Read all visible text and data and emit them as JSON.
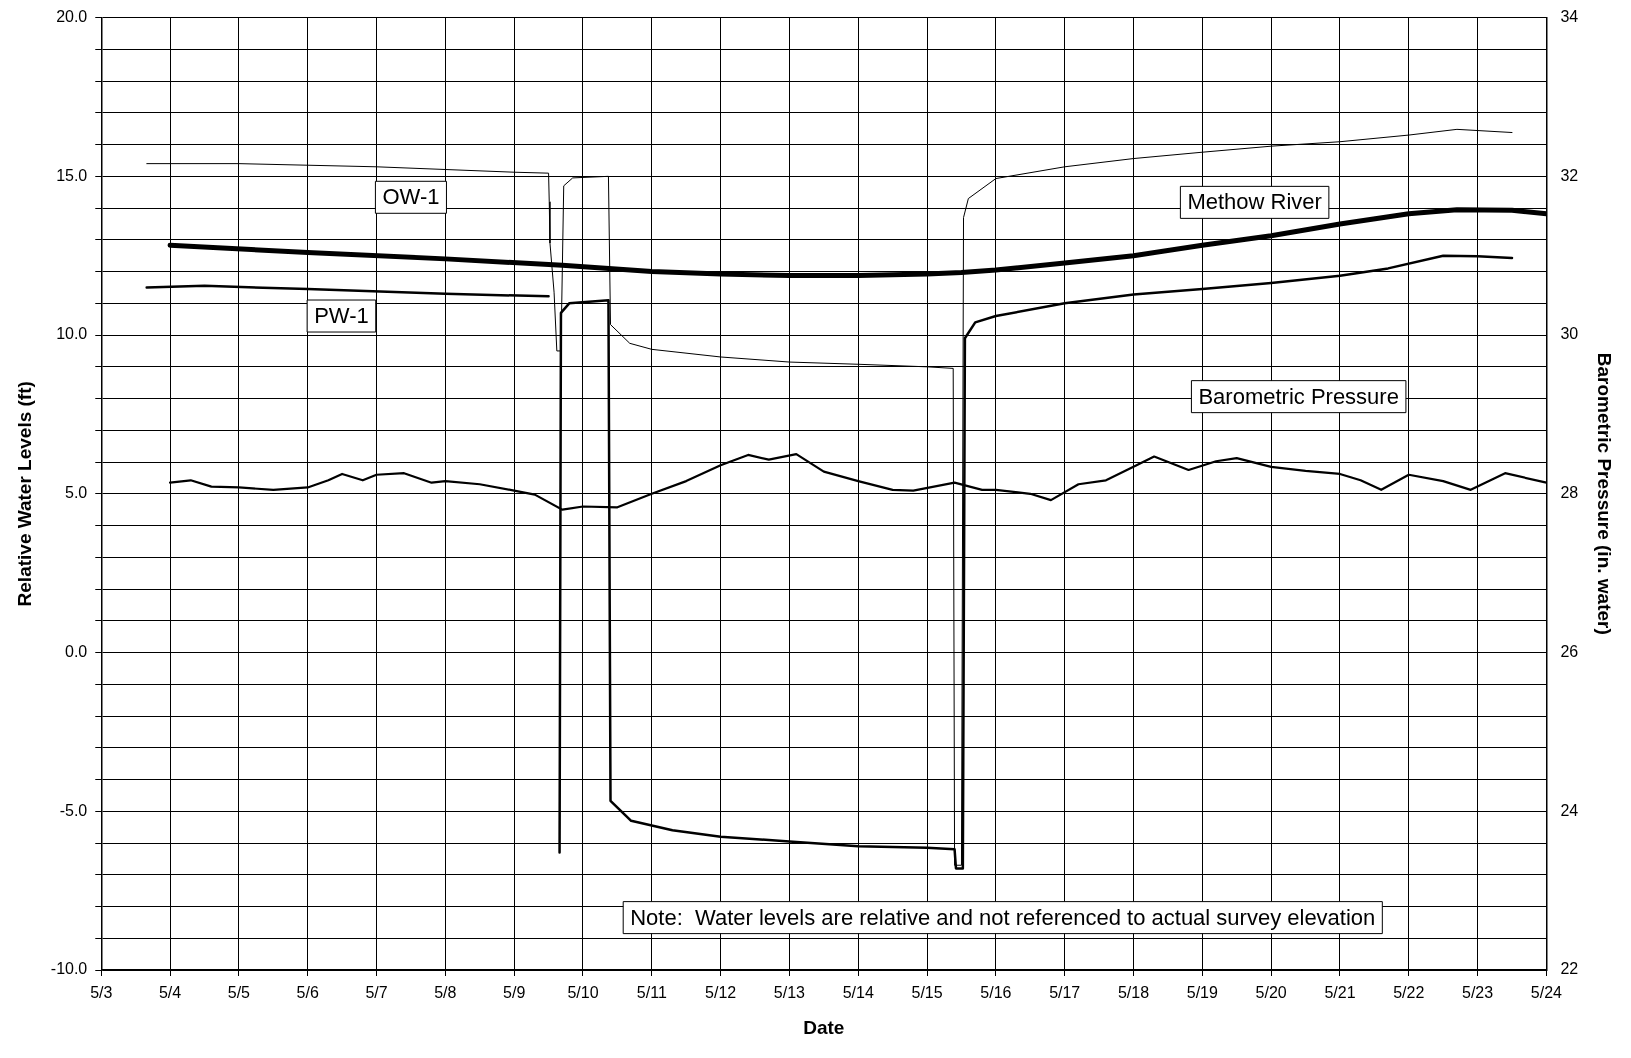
{
  "chart_data": {
    "type": "line",
    "xlabel": "Date",
    "ylabel": "Relative Water Levels (ft)",
    "y2label": "Barometric Pressure (in. water)",
    "xlim": [
      "--05-03",
      "--05-24"
    ],
    "xticks": [
      {
        "value": "--05-03",
        "label": "5/3"
      },
      {
        "value": "--05-04",
        "label": "5/4"
      },
      {
        "value": "--05-05",
        "label": "5/5"
      },
      {
        "value": "--05-06",
        "label": "5/6"
      },
      {
        "value": "--05-07",
        "label": "5/7"
      },
      {
        "value": "--05-08",
        "label": "5/8"
      },
      {
        "value": "--05-09",
        "label": "5/9"
      },
      {
        "value": "--05-10",
        "label": "5/10"
      },
      {
        "value": "--05-11",
        "label": "5/11"
      },
      {
        "value": "--05-12",
        "label": "5/12"
      },
      {
        "value": "--05-13",
        "label": "5/13"
      },
      {
        "value": "--05-14",
        "label": "5/14"
      },
      {
        "value": "--05-15",
        "label": "5/15"
      },
      {
        "value": "--05-16",
        "label": "5/16"
      },
      {
        "value": "--05-17",
        "label": "5/17"
      },
      {
        "value": "--05-18",
        "label": "5/18"
      },
      {
        "value": "--05-19",
        "label": "5/19"
      },
      {
        "value": "--05-20",
        "label": "5/20"
      },
      {
        "value": "--05-21",
        "label": "5/21"
      },
      {
        "value": "--05-22",
        "label": "5/22"
      },
      {
        "value": "--05-23",
        "label": "5/23"
      },
      {
        "value": "--05-24",
        "label": "5/24"
      }
    ],
    "ylim": [
      -10,
      20
    ],
    "yticks": [
      {
        "value": -10,
        "label": "-10.0"
      },
      {
        "value": -9,
        "label": null
      },
      {
        "value": -8,
        "label": null
      },
      {
        "value": -7,
        "label": null
      },
      {
        "value": -6,
        "label": null
      },
      {
        "value": -5,
        "label": "-5.0"
      },
      {
        "value": -4,
        "label": null
      },
      {
        "value": -3,
        "label": null
      },
      {
        "value": -2,
        "label": null
      },
      {
        "value": -1,
        "label": null
      },
      {
        "value": 0,
        "label": "0.0"
      },
      {
        "value": 1,
        "label": null
      },
      {
        "value": 2,
        "label": null
      },
      {
        "value": 3,
        "label": null
      },
      {
        "value": 4,
        "label": null
      },
      {
        "value": 5,
        "label": "5.0"
      },
      {
        "value": 6,
        "label": null
      },
      {
        "value": 7,
        "label": null
      },
      {
        "value": 8,
        "label": null
      },
      {
        "value": 9,
        "label": null
      },
      {
        "value": 10,
        "label": "10.0"
      },
      {
        "value": 11,
        "label": null
      },
      {
        "value": 12,
        "label": null
      },
      {
        "value": 13,
        "label": null
      },
      {
        "value": 14,
        "label": null
      },
      {
        "value": 15,
        "label": "15.0"
      },
      {
        "value": 16,
        "label": null
      },
      {
        "value": 17,
        "label": null
      },
      {
        "value": 18,
        "label": null
      },
      {
        "value": 19,
        "label": null
      },
      {
        "value": 20,
        "label": "20.0"
      }
    ],
    "y2lim": [
      22,
      34
    ],
    "y2ticks": [
      22,
      24,
      26,
      28,
      30,
      32,
      34
    ],
    "grid": true,
    "legend": false,
    "series": [
      {
        "name": "OW-1",
        "color": "#000000",
        "x": [
          "--05-03T15:50",
          "--05-05",
          "--05-07",
          "--05-09",
          "--05-09T12:00",
          "--05-09T12:14",
          "--05-09T12:29",
          "--05-09T13:55",
          "--05-09T14:53",
          "--05-09T16:19",
          "--05-09T17:17",
          "--05-09T20:24",
          "--05-10T08:53",
          "--05-10T09:36",
          "--05-10T16:19",
          "--05-11",
          "--05-12",
          "--05-13",
          "--05-14",
          "--05-15",
          "--05-15T09:07",
          "--05-15T09:36",
          "--05-15T12:00",
          "--05-15T12:43",
          "--05-15T14:24",
          "--05-16",
          "--05-17",
          "--05-18",
          "--05-19",
          "--05-20",
          "--05-21",
          "--05-22",
          "--05-22T16:48",
          "--05-23T12:00"
        ],
        "values": [
          15.4,
          15.4,
          15.3,
          15.13,
          15.1,
          14.2,
          12.9,
          11.35,
          9.5,
          9.5,
          14.7,
          14.95,
          15.0,
          10.33,
          9.74,
          9.55,
          9.31,
          9.15,
          9.08,
          9.0,
          8.95,
          -6.7,
          -6.7,
          13.7,
          14.3,
          14.93,
          15.3,
          15.56,
          15.76,
          15.95,
          16.09,
          16.3,
          16.48,
          16.38
        ]
      },
      {
        "name": "PW-1",
        "color": "#000000",
        "x": [
          "--05-03T15:50",
          "--05-04T12:00",
          "--05-06",
          "--05-08",
          "--05-09T12:00",
          "--05-09T14:24",
          "--05-09T15:50",
          "--05-09T16:19",
          "--05-09T19:12",
          "--05-10T08:53",
          "--05-10T09:36",
          "--05-10T16:48",
          "--05-11T07:12",
          "--05-12",
          "--05-13",
          "--05-14",
          "--05-15",
          "--05-15T09:36",
          "--05-15T10:05",
          "--05-15T12:29",
          "--05-15T13:12",
          "--05-15T16:48",
          "--05-16",
          "--05-17",
          "--05-18",
          "--05-19",
          "--05-20",
          "--05-21",
          "--05-21T16:48",
          "--05-22T12:00",
          "--05-23",
          "--05-23T12:00"
        ],
        "values": [
          11.5,
          11.55,
          11.45,
          11.3,
          11.22,
          null,
          -6.3,
          10.7,
          11.0,
          11.1,
          -4.67,
          -5.3,
          -5.6,
          -5.8,
          -5.95,
          -6.1,
          -6.15,
          -6.2,
          -6.8,
          -6.8,
          9.9,
          10.4,
          10.6,
          11.0,
          11.28,
          11.45,
          11.64,
          11.87,
          12.1,
          12.5,
          12.48,
          12.43
        ]
      },
      {
        "name": "Methow River",
        "color": "#000000",
        "x": [
          "--05-04",
          "--05-06",
          "--05-08",
          "--05-09T16:48",
          "--05-11",
          "--05-12",
          "--05-13",
          "--05-14",
          "--05-15",
          "--05-15T12:00",
          "--05-16",
          "--05-17",
          "--05-18",
          "--05-19",
          "--05-20",
          "--05-21",
          "--05-22",
          "--05-22T16:48",
          "--05-23T12:00",
          "--05-24"
        ],
        "values": [
          12.83,
          12.6,
          12.4,
          12.2,
          12.0,
          11.92,
          11.88,
          11.88,
          11.92,
          11.97,
          12.05,
          12.27,
          12.5,
          12.83,
          13.13,
          13.5,
          13.82,
          13.95,
          13.93,
          13.82
        ]
      },
      {
        "name": "Barometric Pressure",
        "color": "#000000",
        "axis": "y2",
        "x": [
          "--05-04",
          "--05-04T07:12",
          "--05-04T14:24",
          "--05-05",
          "--05-05T12:00",
          "--05-06",
          "--05-06T07:12",
          "--05-06T12:00",
          "--05-06T19:12",
          "--05-07",
          "--05-07T09:36",
          "--05-07T19:12",
          "--05-08",
          "--05-08T12:00",
          "--05-09",
          "--05-09T07:12",
          "--05-09T16:48",
          "--05-10",
          "--05-10T12:00",
          "--05-11",
          "--05-11T12:00",
          "--05-12",
          "--05-12T09:36",
          "--05-12T16:48",
          "--05-13T02:24",
          "--05-13T12:00",
          "--05-14",
          "--05-14T12:00",
          "--05-14T19:12",
          "--05-15T09:36",
          "--05-15T19:12",
          "--05-16",
          "--05-16T12:00",
          "--05-16T19:12",
          "--05-17T04:48",
          "--05-17T14:24",
          "--05-18",
          "--05-18T07:12",
          "--05-18T19:12",
          "--05-19T04:48",
          "--05-19T12:00",
          "--05-20",
          "--05-20T12:00",
          "--05-21",
          "--05-21T07:12",
          "--05-21T14:24",
          "--05-22",
          "--05-22T12:00",
          "--05-22T21:36",
          "--05-23T09:36",
          "--05-24"
        ],
        "values": [
          28.14,
          28.17,
          28.09,
          28.08,
          28.05,
          28.08,
          28.17,
          28.25,
          28.17,
          28.24,
          28.26,
          28.14,
          28.16,
          28.12,
          28.04,
          27.99,
          27.8,
          27.84,
          27.83,
          28.0,
          28.16,
          28.36,
          28.49,
          28.43,
          28.5,
          28.28,
          28.16,
          28.05,
          28.04,
          28.14,
          28.05,
          28.05,
          28.0,
          27.92,
          28.12,
          28.17,
          28.34,
          28.47,
          28.3,
          28.41,
          28.45,
          28.34,
          28.29,
          28.25,
          28.17,
          28.05,
          28.24,
          28.16,
          28.05,
          28.26,
          28.14
        ]
      }
    ],
    "annotations": [
      "Note:  Water levels are relative and not referenced to actual survey elevation"
    ]
  }
}
